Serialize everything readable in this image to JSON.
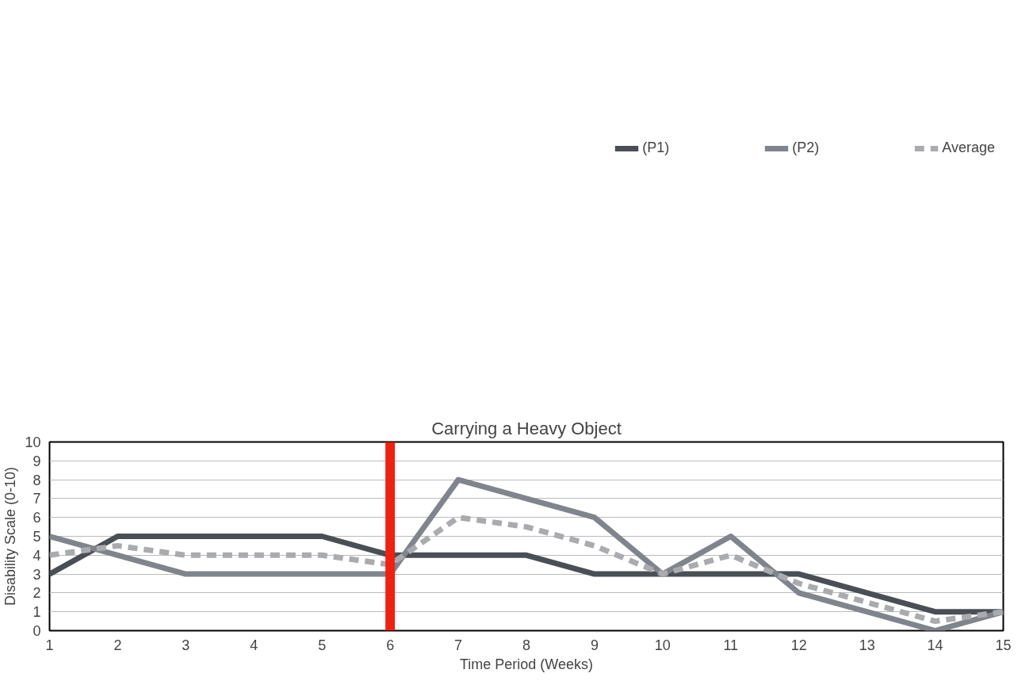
{
  "chart_data": {
    "type": "line",
    "title": "Carrying a Heavy Object",
    "xlabel": "Time Period (Weeks)",
    "ylabel": "Disability Scale (0-10)",
    "x": [
      1,
      2,
      3,
      4,
      5,
      6,
      7,
      8,
      9,
      10,
      11,
      12,
      13,
      14,
      15
    ],
    "series": [
      {
        "name": "(P1)",
        "color": "#4a4f56",
        "values": [
          3,
          5,
          5,
          5,
          5,
          4,
          4,
          4,
          3,
          3,
          3,
          3,
          2,
          1,
          1
        ]
      },
      {
        "name": "(P2)",
        "color": "#80858d",
        "values": [
          5,
          4,
          3,
          3,
          3,
          3,
          8,
          7,
          6,
          3,
          5,
          2,
          1,
          0,
          1
        ]
      },
      {
        "name": "Average",
        "color": "#a9abaf",
        "line_style": "dashed",
        "values": [
          4,
          4.5,
          4,
          4,
          4,
          3.5,
          6,
          5.5,
          4.5,
          3,
          4,
          2.5,
          1.5,
          0.5,
          1
        ]
      }
    ],
    "xlim": [
      1,
      15
    ],
    "xticks": [
      1,
      2,
      3,
      4,
      5,
      6,
      7,
      8,
      9,
      10,
      11,
      12,
      13,
      14,
      15
    ],
    "ylim": [
      0,
      10
    ],
    "yticks": [
      0,
      1,
      2,
      3,
      4,
      5,
      6,
      7,
      8,
      9,
      10
    ],
    "ref_lines": [
      {
        "axis": "x",
        "value": 6,
        "color": "#ee2211"
      }
    ],
    "grid": "y",
    "legend": "top",
    "marker": "none",
    "line_style": "solid"
  }
}
